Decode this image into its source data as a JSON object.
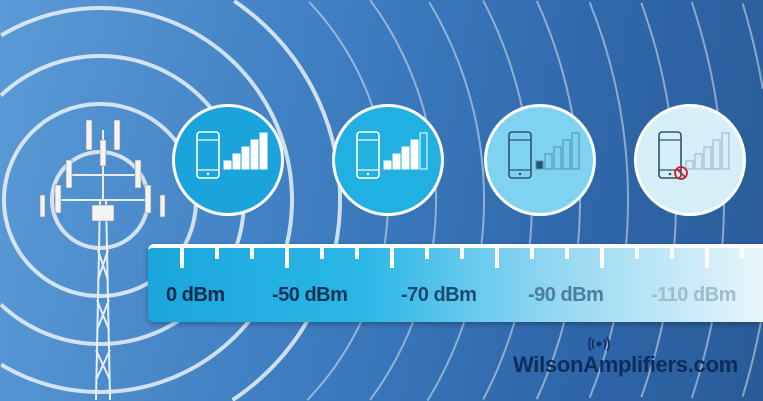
{
  "scale": {
    "labels": [
      "0 dBm",
      "-50 dBm",
      "-70 dBm",
      "-90 dBm",
      "-110 dBm"
    ],
    "label_colors": [
      "#0b2a4e",
      "#0f3356",
      "#1a4a72",
      "#4d7d9e",
      "#9fbccd"
    ]
  },
  "signal_levels": [
    {
      "bars_filled": 5,
      "status": "excellent"
    },
    {
      "bars_filled": 4,
      "status": "good"
    },
    {
      "bars_filled": 1,
      "status": "weak"
    },
    {
      "bars_filled": 0,
      "status": "no-signal"
    }
  ],
  "logo": {
    "text_part1": "Wilson",
    "text_part2": "Amplifiers.com"
  },
  "colors": {
    "accent": "#1aa6dc",
    "background": "#3f7fc2"
  }
}
